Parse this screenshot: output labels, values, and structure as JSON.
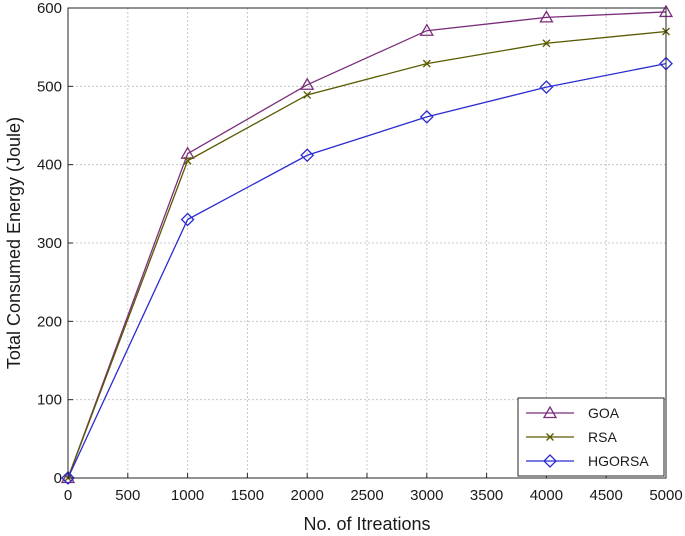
{
  "chart_data": {
    "type": "line",
    "title": "",
    "xlabel": "No. of Itreations",
    "ylabel": "Total Consumed Energy (Joule)",
    "xlim": [
      0,
      5000
    ],
    "ylim": [
      0,
      600
    ],
    "xticks": [
      0,
      500,
      1000,
      1500,
      2000,
      2500,
      3000,
      3500,
      4000,
      4500,
      5000
    ],
    "yticks": [
      0,
      100,
      200,
      300,
      400,
      500,
      600
    ],
    "grid": true,
    "legend_position": "bottom-right",
    "x": [
      0,
      1000,
      2000,
      3000,
      4000,
      5000
    ],
    "series": [
      {
        "name": "GOA",
        "values": [
          0,
          414,
          502,
          571,
          588,
          595
        ],
        "color": "#7b2d7b",
        "marker": "triangle"
      },
      {
        "name": "RSA",
        "values": [
          0,
          405,
          489,
          529,
          555,
          570
        ],
        "color": "#5a5a00",
        "marker": "x"
      },
      {
        "name": "HGORSA",
        "values": [
          0,
          330,
          412,
          461,
          499,
          529
        ],
        "color": "#2b2bd0",
        "marker": "diamond"
      }
    ]
  }
}
